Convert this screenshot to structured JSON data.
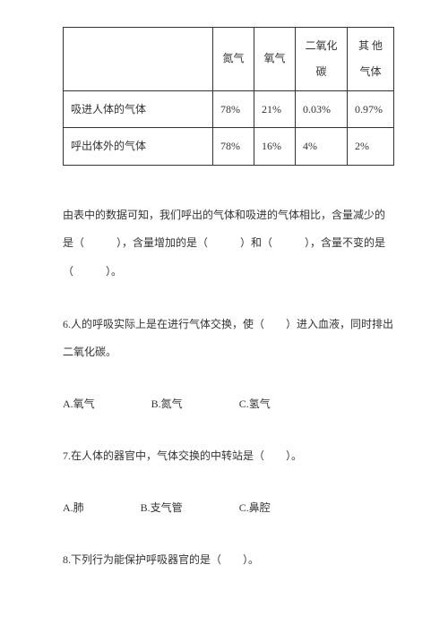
{
  "table": {
    "headers": [
      "",
      "氮气",
      "氧气",
      "二氧化碳",
      "其 他 气体"
    ],
    "rows": [
      {
        "label": "吸进人体的气体",
        "cells": [
          "78%",
          "21%",
          "0.03%",
          "0.97%"
        ]
      },
      {
        "label": "呼出体外的气体",
        "cells": [
          "78%",
          "16%",
          "4%",
          "2%"
        ]
      }
    ]
  },
  "q5_text": "由表中的数据可知，我们呼出的气体和吸进的气体相比，含量减少的是（　　　），含量增加的是（　　　）和（　　　），含量不变的是（　　　）。",
  "q6_text": "6.人的呼吸实际上是在进行气体交换，使（　　）进入血液，同时排出二氧化碳。",
  "q6_opts": {
    "a": "A.氧气",
    "b": "B.氮气",
    "c": "C.氢气"
  },
  "q7_text": "7.在人体的器官中，气体交换的中转站是（　　）。",
  "q7_opts": {
    "a": "A.肺",
    "b": "B.支气管",
    "c": "C.鼻腔"
  },
  "q8_text": "8.下列行为能保护呼吸器官的是（　　）。"
}
